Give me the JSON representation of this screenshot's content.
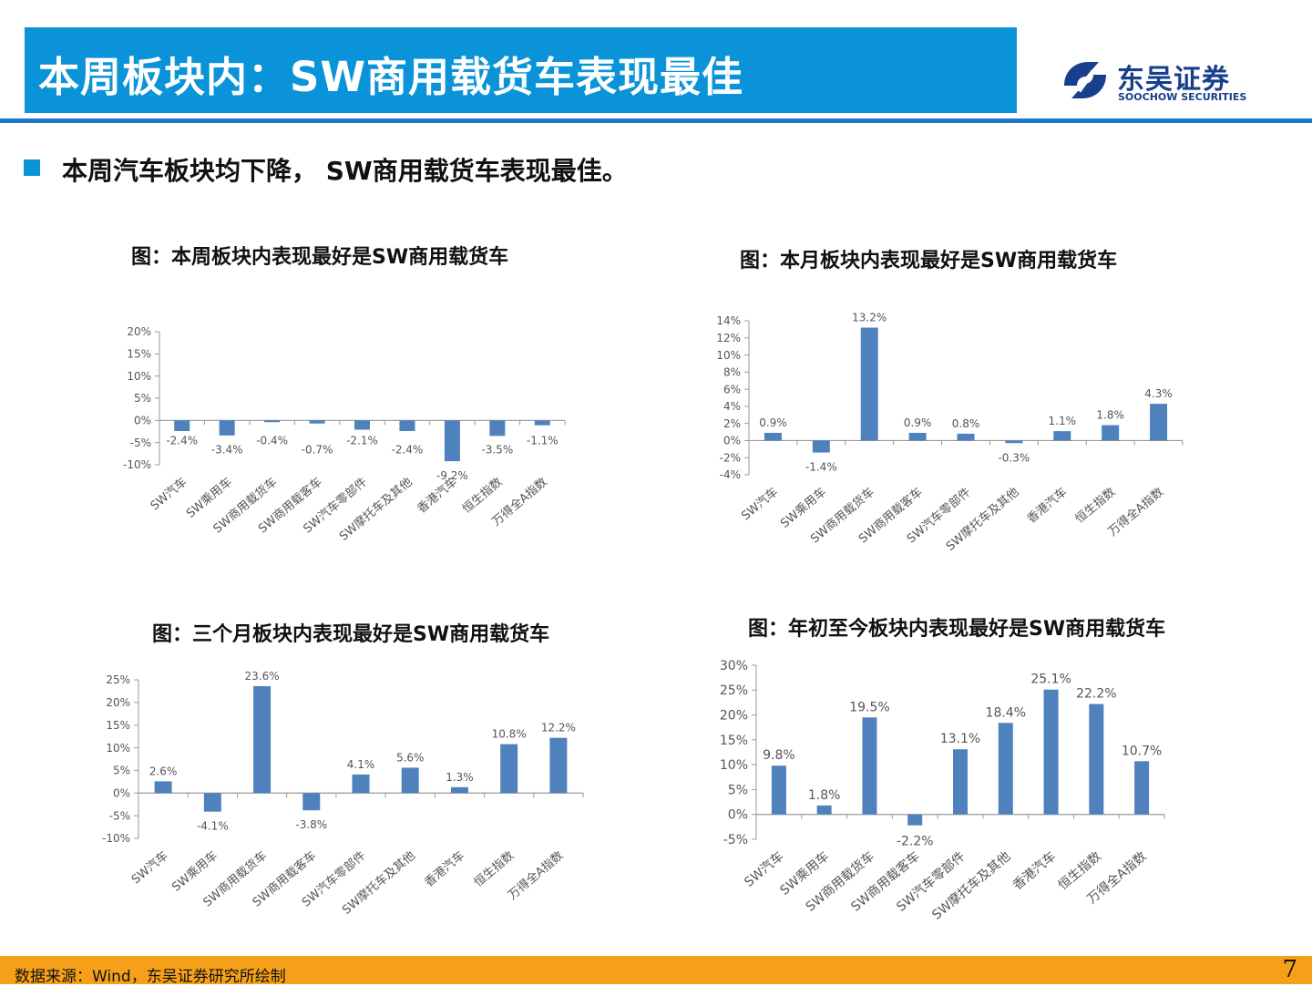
{
  "header": {
    "title": "本周板块内：SW商用载货车表现最佳"
  },
  "logo": {
    "name_cn": "东吴证券",
    "name_en": "SOOCHOW SECURITIES"
  },
  "bullet": {
    "text": "本周汽车板块均下降， SW商用载货车表现最佳。"
  },
  "colors": {
    "accent": "#0a93d8",
    "bar": "#4f81bd",
    "footer": "#f6a01a",
    "brand": "#173f8c"
  },
  "chart_data": [
    {
      "type": "bar",
      "title": "图：本周板块内表现最好是SW商用载货车",
      "categories": [
        "SW汽车",
        "SW乘用车",
        "SW商用载货车",
        "SW商用载客车",
        "SW汽车零部件",
        "SW摩托车及其他",
        "香港汽车",
        "恒生指数",
        "万得全A指数"
      ],
      "values": [
        -2.4,
        -3.4,
        -0.4,
        -0.7,
        -2.1,
        -2.4,
        -9.2,
        -3.5,
        -1.1
      ],
      "value_labels": [
        "-2.4%",
        "-3.4%",
        "-0.4%",
        "-0.7%",
        "-2.1%",
        "-2.4%",
        "-9.2%",
        "-3.5%",
        "-1.1%"
      ],
      "yticks": [
        20,
        15,
        10,
        5,
        0,
        -5,
        -10
      ],
      "ytick_labels": [
        "20%",
        "15%",
        "10%",
        "5%",
        "0%",
        "-5%",
        "-10%"
      ],
      "ylim": [
        -10,
        20
      ]
    },
    {
      "type": "bar",
      "title": "图：本月板块内表现最好是SW商用载货车",
      "categories": [
        "SW汽车",
        "SW乘用车",
        "SW商用载货车",
        "SW商用载客车",
        "SW汽车零部件",
        "SW摩托车及其他",
        "香港汽车",
        "恒生指数",
        "万得全A指数"
      ],
      "values": [
        0.9,
        -1.4,
        13.2,
        0.9,
        0.8,
        -0.3,
        1.1,
        1.8,
        4.3
      ],
      "value_labels": [
        "0.9%",
        "-1.4%",
        "13.2%",
        "0.9%",
        "0.8%",
        "-0.3%",
        "1.1%",
        "1.8%",
        "4.3%"
      ],
      "yticks": [
        14,
        12,
        10,
        8,
        6,
        4,
        2,
        0,
        -2,
        -4
      ],
      "ytick_labels": [
        "14%",
        "12%",
        "10%",
        "8%",
        "6%",
        "4%",
        "2%",
        "0%",
        "-2%",
        "-4%"
      ],
      "ylim": [
        -4,
        14
      ]
    },
    {
      "type": "bar",
      "title": "图：三个月板块内表现最好是SW商用载货车",
      "categories": [
        "SW汽车",
        "SW乘用车",
        "SW商用载货车",
        "SW商用载客车",
        "SW汽车零部件",
        "SW摩托车及其他",
        "香港汽车",
        "恒生指数",
        "万得全A指数"
      ],
      "values": [
        2.6,
        -4.1,
        23.6,
        -3.8,
        4.1,
        5.6,
        1.3,
        10.8,
        12.2
      ],
      "value_labels": [
        "2.6%",
        "-4.1%",
        "23.6%",
        "-3.8%",
        "4.1%",
        "5.6%",
        "1.3%",
        "10.8%",
        "12.2%"
      ],
      "yticks": [
        25,
        20,
        15,
        10,
        5,
        0,
        -5,
        -10
      ],
      "ytick_labels": [
        "25%",
        "20%",
        "15%",
        "10%",
        "5%",
        "0%",
        "-5%",
        "-10%"
      ],
      "ylim": [
        -10,
        25
      ]
    },
    {
      "type": "bar",
      "title": "图：年初至今板块内表现最好是SW商用载货车",
      "categories": [
        "SW汽车",
        "SW乘用车",
        "SW商用载货车",
        "SW商用载客车",
        "SW汽车零部件",
        "SW摩托车及其他",
        "香港汽车",
        "恒生指数",
        "万得全A指数"
      ],
      "values": [
        9.8,
        1.8,
        19.5,
        -2.2,
        13.1,
        18.4,
        25.1,
        22.2,
        10.7
      ],
      "value_labels": [
        "9.8%",
        "1.8%",
        "19.5%",
        "-2.2%",
        "13.1%",
        "18.4%",
        "25.1%",
        "22.2%",
        "10.7%"
      ],
      "yticks": [
        30,
        25,
        20,
        15,
        10,
        5,
        0,
        -5
      ],
      "ytick_labels": [
        "30%",
        "25%",
        "20%",
        "15%",
        "10%",
        "5%",
        "0%",
        "-5%"
      ],
      "ylim": [
        -5,
        30
      ]
    }
  ],
  "footer": {
    "source": "数据来源：Wind，东吴证券研究所绘制",
    "page_number": "7"
  }
}
